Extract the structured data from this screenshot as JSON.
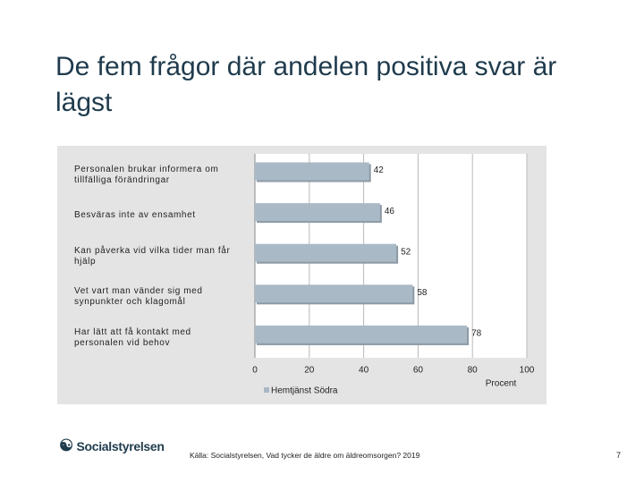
{
  "title": "De fem frågor där andelen positiva svar är lägst",
  "chart_data": {
    "type": "barh",
    "categories": [
      "Personalen brukar informera om tillfälliga förändringar",
      "Besväras inte av ensamhet",
      "Kan påverka vid vilka tider man får hjälp",
      "Vet vart man vänder sig med synpunkter och klagomål",
      "Har lätt att få kontakt med personalen vid behov"
    ],
    "series": [
      {
        "name": "Hemtjänst Södra",
        "color": "#a9b9c6",
        "values": [
          42,
          46,
          52,
          58,
          78
        ]
      }
    ],
    "xlim": [
      0,
      100
    ],
    "xticks": [
      0,
      20,
      40,
      60,
      80,
      100
    ],
    "xlabel": "Procent",
    "grid": true
  },
  "logo": "Socialstyrelsen",
  "source": "Källa: Socialstyrelsen, Vad tycker de äldre om äldreomsorgen? 2019",
  "page_number": "7"
}
